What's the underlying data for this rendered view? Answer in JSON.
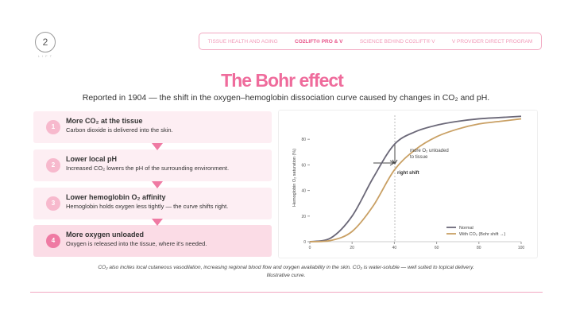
{
  "header": {
    "logo": "2",
    "logo_sub": "LIFT",
    "nav": [
      "TISSUE HEALTH AND AGING",
      "CO2LIFT® PRO & V",
      "SCIENCE BEHIND CO2LIFT® V",
      "V PROVIDER DIRECT PROGRAM"
    ]
  },
  "title": "The Bohr effect",
  "subtitle": "Reported in 1904 — the shift in the oxygen–hemoglobin dissociation curve caused by changes in CO₂ and pH.",
  "steps": [
    {
      "number": "1",
      "title": "More CO₂ at the tissue",
      "text": "Carbon dioxide is delivered into the skin."
    },
    {
      "number": "2",
      "title": "Lower local pH",
      "text": "Increased CO₂ lowers the pH of the surrounding environment."
    },
    {
      "number": "3",
      "title": "Lower hemoglobin O₂ affinity",
      "text": "Hemoglobin holds oxygen less tightly — the curve shifts right."
    },
    {
      "number": "4",
      "title": "More oxygen unloaded",
      "text": "Oxygen is released into the tissue, where it's needed."
    }
  ],
  "chart_data": {
    "type": "line",
    "y_label": "Hemoglobin O₂ saturation (%)",
    "x": [
      0,
      10,
      20,
      30,
      40,
      50,
      60,
      70,
      80,
      90,
      100
    ],
    "series": [
      {
        "name": "Normal",
        "color": "#6b6878",
        "values": [
          0,
          3,
          20,
          50,
          76,
          86,
          91,
          94,
          96,
          97,
          98
        ]
      },
      {
        "name": "With CO₂ (Bohr shift →)",
        "color": "#c9a064",
        "values": [
          0,
          1,
          8,
          28,
          56,
          72,
          82,
          88,
          92,
          94,
          96
        ]
      }
    ],
    "xlim": [
      0,
      100
    ],
    "xticks": [
      0,
      20,
      40,
      60,
      80,
      100
    ],
    "ylim": [
      0,
      100
    ],
    "yticks": [
      0,
      20,
      40,
      60,
      80
    ],
    "annotations": [
      "more O₂ unloaded to tissue",
      "right shift"
    ],
    "legend": "bottom-right"
  },
  "footnote": "CO₂ also incites local cutaneous vasodilation, increasing regional blood flow and oxygen availability in the skin. CO₂ is water-soluble — well suited to topical delivery. Illustrative curve."
}
